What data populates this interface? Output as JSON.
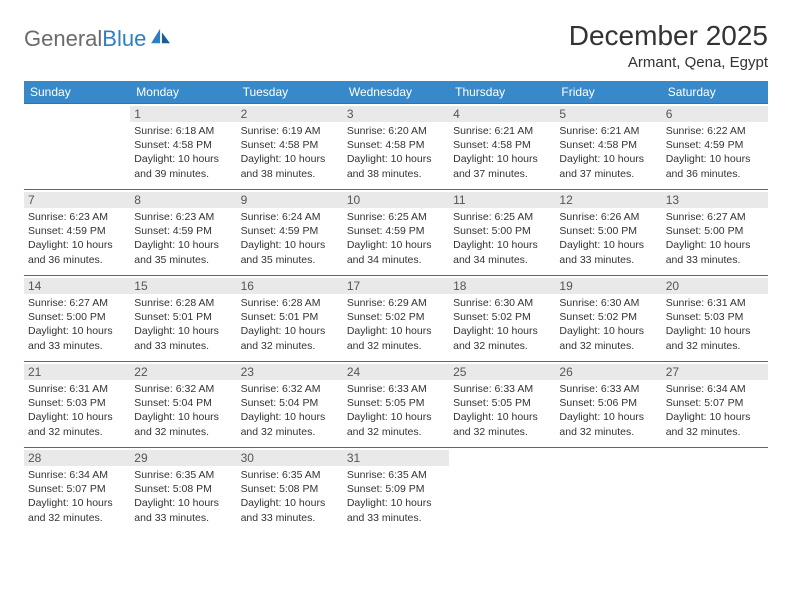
{
  "logo": {
    "word1": "General",
    "word2": "Blue"
  },
  "title": "December 2025",
  "location": "Armant, Qena, Egypt",
  "colors": {
    "header_bg": "#3789c9",
    "header_fg": "#ffffff",
    "row_border": "#3a6fa5",
    "daynum_bg": "#e9e9e9",
    "daynum_fg": "#555555",
    "text": "#333333",
    "logo_gray": "#6b6b6b",
    "logo_blue": "#2d7fc1",
    "page_bg": "#ffffff"
  },
  "weekdays": [
    "Sunday",
    "Monday",
    "Tuesday",
    "Wednesday",
    "Thursday",
    "Friday",
    "Saturday"
  ],
  "weeks": [
    [
      null,
      {
        "n": "1",
        "sr": "Sunrise: 6:18 AM",
        "ss": "Sunset: 4:58 PM",
        "d1": "Daylight: 10 hours",
        "d2": "and 39 minutes."
      },
      {
        "n": "2",
        "sr": "Sunrise: 6:19 AM",
        "ss": "Sunset: 4:58 PM",
        "d1": "Daylight: 10 hours",
        "d2": "and 38 minutes."
      },
      {
        "n": "3",
        "sr": "Sunrise: 6:20 AM",
        "ss": "Sunset: 4:58 PM",
        "d1": "Daylight: 10 hours",
        "d2": "and 38 minutes."
      },
      {
        "n": "4",
        "sr": "Sunrise: 6:21 AM",
        "ss": "Sunset: 4:58 PM",
        "d1": "Daylight: 10 hours",
        "d2": "and 37 minutes."
      },
      {
        "n": "5",
        "sr": "Sunrise: 6:21 AM",
        "ss": "Sunset: 4:58 PM",
        "d1": "Daylight: 10 hours",
        "d2": "and 37 minutes."
      },
      {
        "n": "6",
        "sr": "Sunrise: 6:22 AM",
        "ss": "Sunset: 4:59 PM",
        "d1": "Daylight: 10 hours",
        "d2": "and 36 minutes."
      }
    ],
    [
      {
        "n": "7",
        "sr": "Sunrise: 6:23 AM",
        "ss": "Sunset: 4:59 PM",
        "d1": "Daylight: 10 hours",
        "d2": "and 36 minutes."
      },
      {
        "n": "8",
        "sr": "Sunrise: 6:23 AM",
        "ss": "Sunset: 4:59 PM",
        "d1": "Daylight: 10 hours",
        "d2": "and 35 minutes."
      },
      {
        "n": "9",
        "sr": "Sunrise: 6:24 AM",
        "ss": "Sunset: 4:59 PM",
        "d1": "Daylight: 10 hours",
        "d2": "and 35 minutes."
      },
      {
        "n": "10",
        "sr": "Sunrise: 6:25 AM",
        "ss": "Sunset: 4:59 PM",
        "d1": "Daylight: 10 hours",
        "d2": "and 34 minutes."
      },
      {
        "n": "11",
        "sr": "Sunrise: 6:25 AM",
        "ss": "Sunset: 5:00 PM",
        "d1": "Daylight: 10 hours",
        "d2": "and 34 minutes."
      },
      {
        "n": "12",
        "sr": "Sunrise: 6:26 AM",
        "ss": "Sunset: 5:00 PM",
        "d1": "Daylight: 10 hours",
        "d2": "and 33 minutes."
      },
      {
        "n": "13",
        "sr": "Sunrise: 6:27 AM",
        "ss": "Sunset: 5:00 PM",
        "d1": "Daylight: 10 hours",
        "d2": "and 33 minutes."
      }
    ],
    [
      {
        "n": "14",
        "sr": "Sunrise: 6:27 AM",
        "ss": "Sunset: 5:00 PM",
        "d1": "Daylight: 10 hours",
        "d2": "and 33 minutes."
      },
      {
        "n": "15",
        "sr": "Sunrise: 6:28 AM",
        "ss": "Sunset: 5:01 PM",
        "d1": "Daylight: 10 hours",
        "d2": "and 33 minutes."
      },
      {
        "n": "16",
        "sr": "Sunrise: 6:28 AM",
        "ss": "Sunset: 5:01 PM",
        "d1": "Daylight: 10 hours",
        "d2": "and 32 minutes."
      },
      {
        "n": "17",
        "sr": "Sunrise: 6:29 AM",
        "ss": "Sunset: 5:02 PM",
        "d1": "Daylight: 10 hours",
        "d2": "and 32 minutes."
      },
      {
        "n": "18",
        "sr": "Sunrise: 6:30 AM",
        "ss": "Sunset: 5:02 PM",
        "d1": "Daylight: 10 hours",
        "d2": "and 32 minutes."
      },
      {
        "n": "19",
        "sr": "Sunrise: 6:30 AM",
        "ss": "Sunset: 5:02 PM",
        "d1": "Daylight: 10 hours",
        "d2": "and 32 minutes."
      },
      {
        "n": "20",
        "sr": "Sunrise: 6:31 AM",
        "ss": "Sunset: 5:03 PM",
        "d1": "Daylight: 10 hours",
        "d2": "and 32 minutes."
      }
    ],
    [
      {
        "n": "21",
        "sr": "Sunrise: 6:31 AM",
        "ss": "Sunset: 5:03 PM",
        "d1": "Daylight: 10 hours",
        "d2": "and 32 minutes."
      },
      {
        "n": "22",
        "sr": "Sunrise: 6:32 AM",
        "ss": "Sunset: 5:04 PM",
        "d1": "Daylight: 10 hours",
        "d2": "and 32 minutes."
      },
      {
        "n": "23",
        "sr": "Sunrise: 6:32 AM",
        "ss": "Sunset: 5:04 PM",
        "d1": "Daylight: 10 hours",
        "d2": "and 32 minutes."
      },
      {
        "n": "24",
        "sr": "Sunrise: 6:33 AM",
        "ss": "Sunset: 5:05 PM",
        "d1": "Daylight: 10 hours",
        "d2": "and 32 minutes."
      },
      {
        "n": "25",
        "sr": "Sunrise: 6:33 AM",
        "ss": "Sunset: 5:05 PM",
        "d1": "Daylight: 10 hours",
        "d2": "and 32 minutes."
      },
      {
        "n": "26",
        "sr": "Sunrise: 6:33 AM",
        "ss": "Sunset: 5:06 PM",
        "d1": "Daylight: 10 hours",
        "d2": "and 32 minutes."
      },
      {
        "n": "27",
        "sr": "Sunrise: 6:34 AM",
        "ss": "Sunset: 5:07 PM",
        "d1": "Daylight: 10 hours",
        "d2": "and 32 minutes."
      }
    ],
    [
      {
        "n": "28",
        "sr": "Sunrise: 6:34 AM",
        "ss": "Sunset: 5:07 PM",
        "d1": "Daylight: 10 hours",
        "d2": "and 32 minutes."
      },
      {
        "n": "29",
        "sr": "Sunrise: 6:35 AM",
        "ss": "Sunset: 5:08 PM",
        "d1": "Daylight: 10 hours",
        "d2": "and 33 minutes."
      },
      {
        "n": "30",
        "sr": "Sunrise: 6:35 AM",
        "ss": "Sunset: 5:08 PM",
        "d1": "Daylight: 10 hours",
        "d2": "and 33 minutes."
      },
      {
        "n": "31",
        "sr": "Sunrise: 6:35 AM",
        "ss": "Sunset: 5:09 PM",
        "d1": "Daylight: 10 hours",
        "d2": "and 33 minutes."
      },
      null,
      null,
      null
    ]
  ]
}
